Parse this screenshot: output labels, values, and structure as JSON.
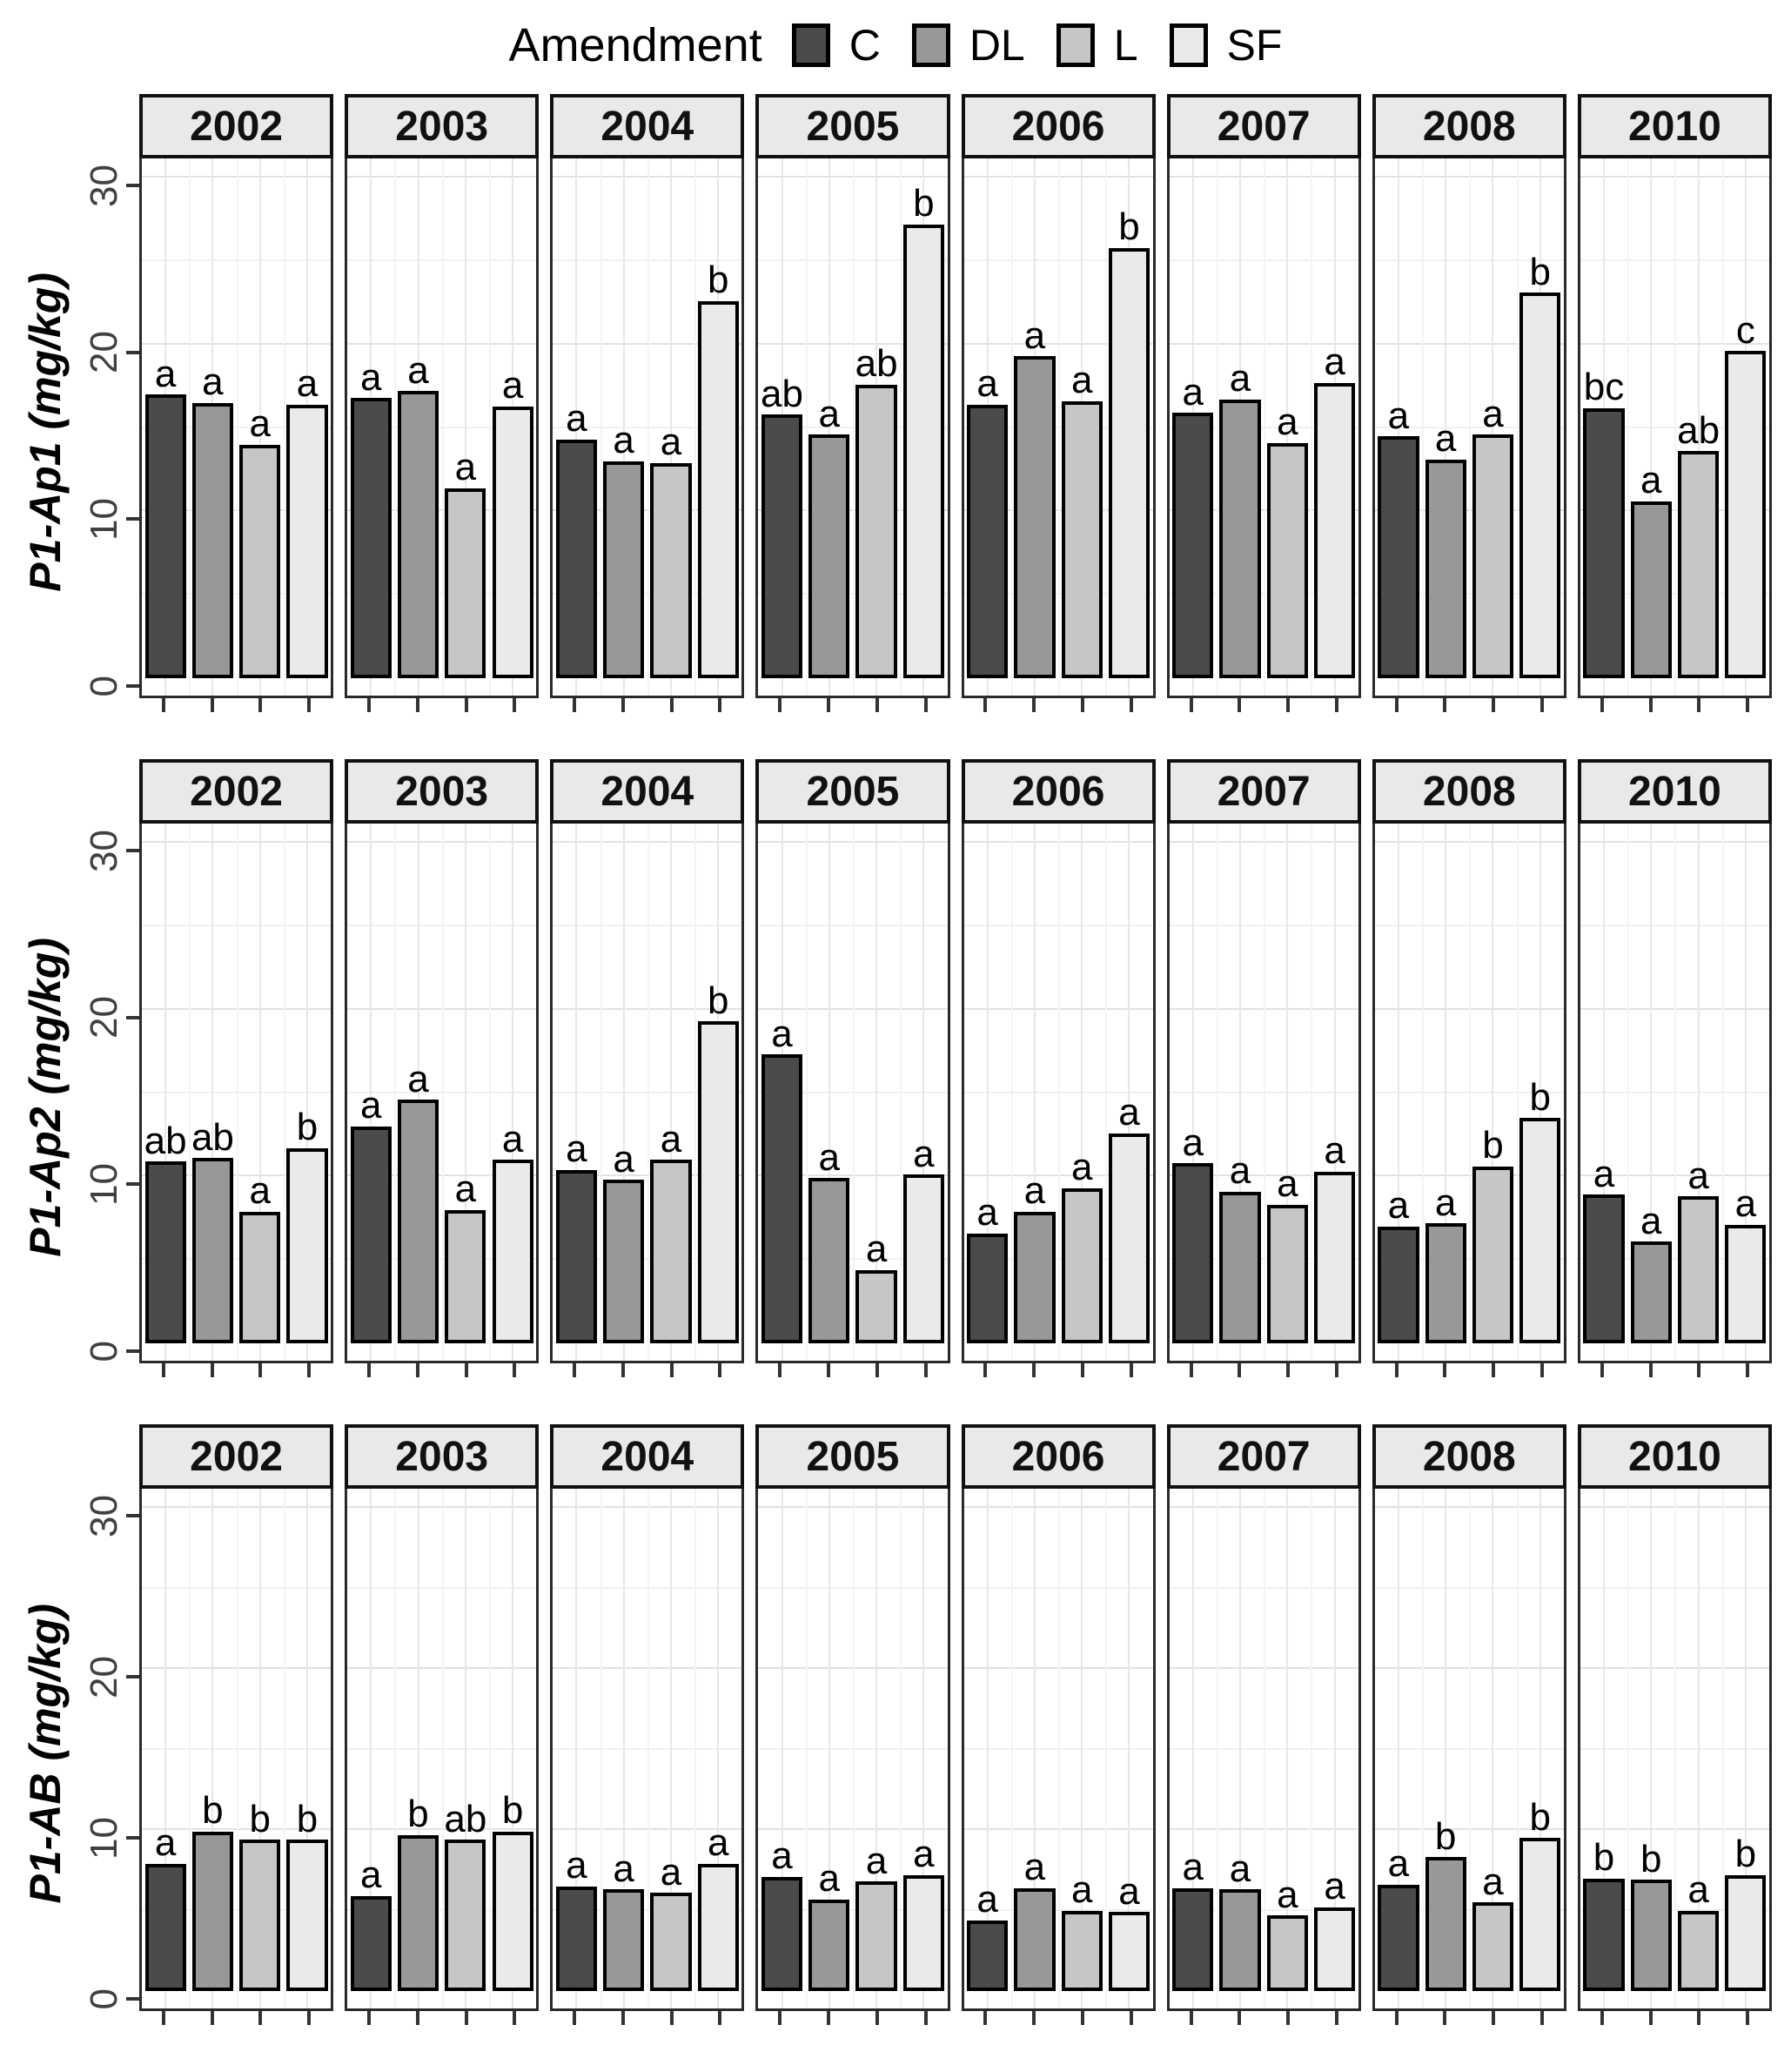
{
  "chart_data": {
    "type": "bar",
    "title": "",
    "legend": {
      "title": "Amendment",
      "position": "top",
      "items": [
        {
          "label": "C",
          "color": "#4b4b4b"
        },
        {
          "label": "DL",
          "color": "#989898"
        },
        {
          "label": "L",
          "color": "#c6c6c6"
        },
        {
          "label": "SF",
          "color": "#eaeaea"
        }
      ]
    },
    "categories": [
      "C",
      "DL",
      "L",
      "SF"
    ],
    "ylim": [
      0,
      30
    ],
    "yticks": [
      0,
      10,
      20,
      30
    ],
    "grid": "on",
    "facet_rows": [
      {
        "ylabel": "P1-Ap1 (mg/kg)",
        "panels": [
          {
            "year": "2002",
            "values": [
              17.0,
              16.5,
              14.0,
              16.4
            ],
            "letters": [
              "a",
              "a",
              "a",
              "a"
            ]
          },
          {
            "year": "2003",
            "values": [
              16.8,
              17.2,
              11.4,
              16.3
            ],
            "letters": [
              "a",
              "a",
              "a",
              "a"
            ]
          },
          {
            "year": "2004",
            "values": [
              14.3,
              13.0,
              12.9,
              22.6
            ],
            "letters": [
              "a",
              "a",
              "a",
              "b"
            ]
          },
          {
            "year": "2005",
            "values": [
              15.8,
              14.6,
              17.6,
              27.2
            ],
            "letters": [
              "ab",
              "a",
              "ab",
              "b"
            ]
          },
          {
            "year": "2006",
            "values": [
              16.4,
              19.3,
              16.6,
              25.8
            ],
            "letters": [
              "a",
              "a",
              "a",
              "b"
            ]
          },
          {
            "year": "2007",
            "values": [
              15.9,
              16.7,
              14.1,
              17.7
            ],
            "letters": [
              "a",
              "a",
              "a",
              "a"
            ]
          },
          {
            "year": "2008",
            "values": [
              14.5,
              13.1,
              14.6,
              23.1
            ],
            "letters": [
              "a",
              "a",
              "a",
              "b"
            ]
          },
          {
            "year": "2010",
            "values": [
              16.2,
              10.6,
              13.6,
              19.6
            ],
            "letters": [
              "bc",
              "a",
              "ab",
              "c"
            ]
          }
        ]
      },
      {
        "ylabel": "P1-Ap2 (mg/kg)",
        "panels": [
          {
            "year": "2002",
            "values": [
              10.9,
              11.1,
              7.9,
              11.7
            ],
            "letters": [
              "ab",
              "ab",
              "a",
              "b"
            ]
          },
          {
            "year": "2003",
            "values": [
              13.0,
              14.6,
              8.0,
              11.0
            ],
            "letters": [
              "a",
              "a",
              "a",
              "a"
            ]
          },
          {
            "year": "2004",
            "values": [
              10.4,
              9.8,
              11.0,
              19.3
            ],
            "letters": [
              "a",
              "a",
              "a",
              "b"
            ]
          },
          {
            "year": "2005",
            "values": [
              17.3,
              9.9,
              4.4,
              10.1
            ],
            "letters": [
              "a",
              "a",
              "a",
              "a"
            ]
          },
          {
            "year": "2006",
            "values": [
              6.6,
              7.9,
              9.3,
              12.6
            ],
            "letters": [
              "a",
              "a",
              "a",
              "a"
            ]
          },
          {
            "year": "2007",
            "values": [
              10.8,
              9.1,
              8.3,
              10.3
            ],
            "letters": [
              "a",
              "a",
              "a",
              "a"
            ]
          },
          {
            "year": "2008",
            "values": [
              7.0,
              7.2,
              10.6,
              13.5
            ],
            "letters": [
              "a",
              "a",
              "b",
              "b"
            ]
          },
          {
            "year": "2010",
            "values": [
              8.9,
              6.1,
              8.8,
              7.1
            ],
            "letters": [
              "a",
              "a",
              "a",
              "a"
            ]
          }
        ]
      },
      {
        "ylabel": "P1-AB (mg/kg)",
        "panels": [
          {
            "year": "2002",
            "values": [
              7.9,
              9.9,
              9.4,
              9.4
            ],
            "letters": [
              "a",
              "b",
              "b",
              "b"
            ]
          },
          {
            "year": "2003",
            "values": [
              5.9,
              9.7,
              9.4,
              9.9
            ],
            "letters": [
              "a",
              "b",
              "ab",
              "b"
            ]
          },
          {
            "year": "2004",
            "values": [
              6.5,
              6.3,
              6.1,
              7.9
            ],
            "letters": [
              "a",
              "a",
              "a",
              "a"
            ]
          },
          {
            "year": "2005",
            "values": [
              7.1,
              5.7,
              6.8,
              7.2
            ],
            "letters": [
              "a",
              "a",
              "a",
              "a"
            ]
          },
          {
            "year": "2006",
            "values": [
              4.4,
              6.4,
              5.0,
              4.9
            ],
            "letters": [
              "a",
              "a",
              "a",
              "a"
            ]
          },
          {
            "year": "2007",
            "values": [
              6.4,
              6.3,
              4.7,
              5.2
            ],
            "letters": [
              "a",
              "a",
              "a",
              "a"
            ]
          },
          {
            "year": "2008",
            "values": [
              6.6,
              8.3,
              5.5,
              9.5
            ],
            "letters": [
              "a",
              "b",
              "a",
              "b"
            ]
          },
          {
            "year": "2010",
            "values": [
              7.0,
              6.9,
              5.0,
              7.2
            ],
            "letters": [
              "b",
              "b",
              "a",
              "b"
            ]
          }
        ]
      }
    ]
  }
}
